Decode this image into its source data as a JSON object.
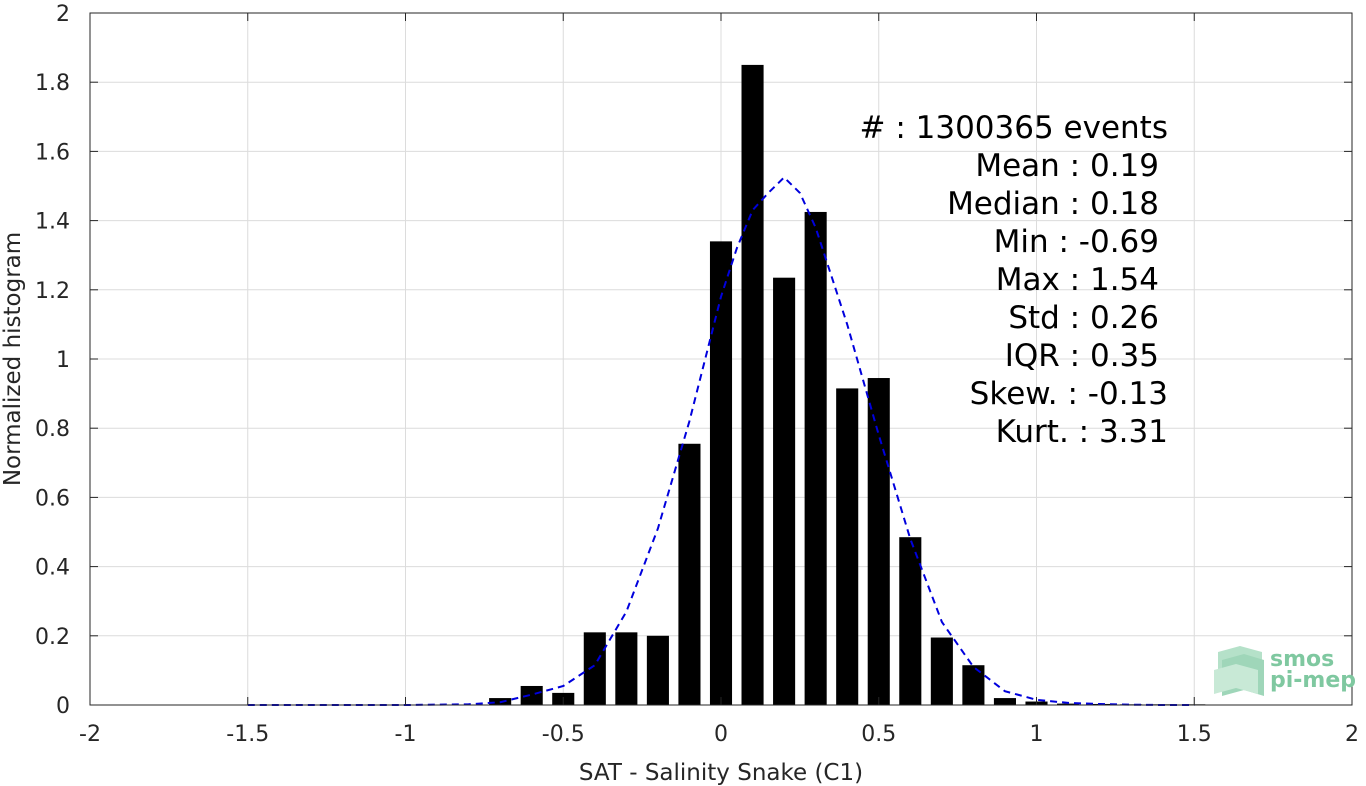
{
  "chart_data": {
    "type": "bar",
    "xlabel": "SAT - Salinity Snake (C1)",
    "ylabel": "Normalized histogram",
    "xlim": [
      -2,
      2
    ],
    "ylim": [
      0,
      2
    ],
    "xticks": [
      -2,
      -1.5,
      -1,
      -0.5,
      0,
      0.5,
      1,
      1.5,
      2
    ],
    "xtick_labels": [
      "-2",
      "-1.5",
      "-1",
      "-0.5",
      "0",
      "0.5",
      "1",
      "1.5",
      "2"
    ],
    "yticks": [
      0,
      0.2,
      0.4,
      0.6,
      0.8,
      1,
      1.2,
      1.4,
      1.6,
      1.8,
      2
    ],
    "ytick_labels": [
      "0",
      "0.2",
      "0.4",
      "0.6",
      "0.8",
      "1",
      "1.2",
      "1.4",
      "1.6",
      "1.8",
      "2"
    ],
    "grid": true,
    "bar_color": "#000000",
    "bars": {
      "x": [
        -0.7,
        -0.6,
        -0.5,
        -0.4,
        -0.3,
        -0.2,
        -0.1,
        0.0,
        0.1,
        0.2,
        0.3,
        0.4,
        0.5,
        0.6,
        0.7,
        0.8,
        0.9,
        1.0,
        1.1,
        1.2,
        1.3,
        1.4,
        1.5
      ],
      "values": [
        0.02,
        0.055,
        0.035,
        0.21,
        0.21,
        0.2,
        0.755,
        1.34,
        1.85,
        1.235,
        1.425,
        0.915,
        0.945,
        0.485,
        0.195,
        0.115,
        0.02,
        0.01,
        0.004,
        0.003,
        0.002,
        0.002,
        0.002
      ],
      "width": 0.07
    },
    "fit_curve": {
      "style": "dashed",
      "color": "#0000dd",
      "x": [
        -1.5,
        -1.2,
        -1.0,
        -0.8,
        -0.7,
        -0.6,
        -0.5,
        -0.4,
        -0.3,
        -0.2,
        -0.1,
        0.0,
        0.05,
        0.1,
        0.15,
        0.2,
        0.25,
        0.3,
        0.4,
        0.5,
        0.6,
        0.7,
        0.8,
        0.9,
        1.0,
        1.1,
        1.2,
        1.3,
        1.4,
        1.5
      ],
      "y": [
        0.0,
        0.0,
        0.0,
        0.002,
        0.008,
        0.03,
        0.055,
        0.115,
        0.27,
        0.51,
        0.82,
        1.18,
        1.32,
        1.43,
        1.48,
        1.525,
        1.48,
        1.38,
        1.1,
        0.78,
        0.48,
        0.24,
        0.11,
        0.04,
        0.015,
        0.006,
        0.003,
        0.001,
        0.0,
        0.0
      ]
    },
    "annotations": [
      "#  : 1300365 events",
      "Mean : 0.19",
      "Median : 0.18",
      "Min : -0.69",
      "Max : 1.54",
      "Std : 0.26",
      "IQR : 0.35",
      "Skew. : -0.13",
      "Kurt. : 3.31"
    ]
  },
  "logo": {
    "line1": "smos",
    "line2": "pi-mep"
  }
}
